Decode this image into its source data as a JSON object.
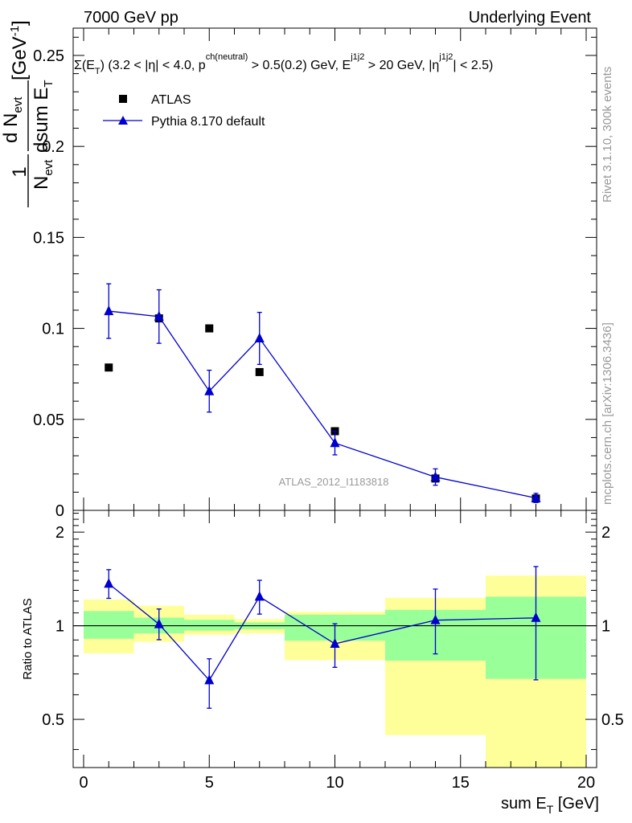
{
  "header": {
    "left_title": "7000 GeV pp",
    "right_title": "Underlying Event"
  },
  "side_text": {
    "rivet": "Rivet 3.1.10,  300k events",
    "mcplots": "mcplots.cern.ch [arXiv:1306.3436]"
  },
  "colors": {
    "mc": "#0000cc",
    "data": "#000000",
    "band_outer": "#ffff99",
    "band_inner": "#99ff99",
    "watermark": "#9a9a9a"
  },
  "chart_data": [
    {
      "type": "scatter",
      "panel": "main",
      "annotation": {
        "sigma": "Σ(E",
        "sub_t": "T",
        "p1": ") (3.2 < |η| < 4.0, p",
        "sup_ch": "ch(neutral)",
        "p2": " > 0.5(0.2) GeV, E",
        "sup_j": "j1j2",
        "p3": " > 20 GeV, |η",
        "sup_j2": "j1j2",
        "p4": "| < 2.5)"
      },
      "ylabel_parts": {
        "one": "1",
        "n": "N",
        "evt": "evt",
        "d": "d N",
        "dsum": "dsum E",
        "t": "T",
        "unit": "[GeV",
        "unit_sup": "-1",
        "unit_close": "]"
      },
      "xlim": [
        0,
        20
      ],
      "ylim": [
        0,
        0.265
      ],
      "yticks": [
        0,
        0.05,
        0.1,
        0.15,
        0.2,
        0.25
      ],
      "ytick_labels": [
        "0",
        "0.05",
        "0.1",
        "0.15",
        "0.2",
        "0.25"
      ],
      "watermark": "ATLAS_2012_I1183818",
      "legend": [
        {
          "label": "ATLAS",
          "marker": "square"
        },
        {
          "label": "Pythia 8.170 default",
          "marker": "triangle"
        }
      ],
      "series": [
        {
          "name": "ATLAS",
          "x": [
            1,
            3,
            5,
            7,
            10,
            14,
            18
          ],
          "y": [
            0.0785,
            0.1055,
            0.1,
            0.076,
            0.0435,
            0.0175,
            0.0065
          ]
        },
        {
          "name": "Pythia 8.170 default",
          "x": [
            1,
            3,
            5,
            7,
            10,
            14,
            18
          ],
          "y": [
            0.1095,
            0.1065,
            0.0655,
            0.0945,
            0.037,
            0.0183,
            0.0068
          ],
          "yerr": [
            0.015,
            0.0147,
            0.0115,
            0.0143,
            0.0065,
            0.0045,
            0.0025
          ]
        }
      ]
    },
    {
      "type": "line",
      "panel": "ratio",
      "ylabel": "Ratio to ATLAS",
      "xlabel": "sum E",
      "xlabel_sub": "T",
      "xlabel_unit": " [GeV]",
      "xlim": [
        0,
        20
      ],
      "ylim": [
        0.35,
        2.35
      ],
      "log_y": true,
      "xticks": [
        0,
        5,
        10,
        15,
        20
      ],
      "xtick_labels": [
        "0",
        "5",
        "10",
        "15",
        "20"
      ],
      "yticks": [
        0.5,
        1,
        2
      ],
      "ytick_labels": [
        "0.5",
        "1",
        "2"
      ],
      "bins": [
        {
          "xlo": 0,
          "xhi": 2,
          "inner": [
            0.908,
            1.115
          ],
          "outer": [
            0.815,
            1.215
          ]
        },
        {
          "xlo": 2,
          "xhi": 4,
          "inner": [
            0.945,
            1.062
          ],
          "outer": [
            0.888,
            1.16
          ]
        },
        {
          "xlo": 4,
          "xhi": 6,
          "inner": [
            0.965,
            1.045
          ],
          "outer": [
            0.935,
            1.085
          ]
        },
        {
          "xlo": 6,
          "xhi": 8,
          "inner": [
            0.975,
            1.025
          ],
          "outer": [
            0.945,
            1.05
          ]
        },
        {
          "xlo": 8,
          "xhi": 12,
          "inner": [
            0.895,
            1.085
          ],
          "outer": [
            0.775,
            1.11
          ]
        },
        {
          "xlo": 12,
          "xhi": 16,
          "inner": [
            0.772,
            1.125
          ],
          "outer": [
            0.445,
            1.23
          ]
        },
        {
          "xlo": 16,
          "xhi": 20,
          "inner": [
            0.675,
            1.24
          ],
          "outer": [
            0.35,
            1.45
          ]
        }
      ],
      "series": [
        {
          "name": "Pythia 8.170 default",
          "x": [
            1,
            3,
            5,
            7,
            10,
            14,
            18
          ],
          "y": [
            1.365,
            1.012,
            0.668,
            1.24,
            0.875,
            1.042,
            1.06
          ],
          "yerr_lo": [
            0.14,
            0.11,
            0.125,
            0.15,
            0.14,
            0.23,
            0.39
          ],
          "yerr_hi": [
            0.15,
            0.12,
            0.115,
            0.16,
            0.14,
            0.27,
            0.49
          ]
        }
      ]
    }
  ]
}
